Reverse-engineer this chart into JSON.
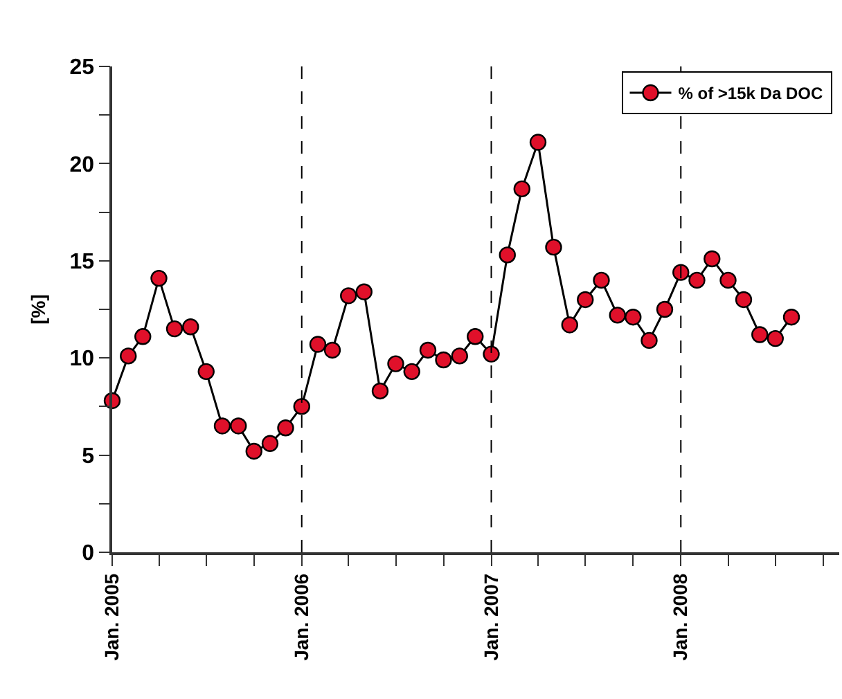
{
  "chart_data": {
    "type": "line",
    "ylabel": "[%]",
    "x": [
      "2005-01",
      "2005-02",
      "2005-03",
      "2005-04",
      "2005-05",
      "2005-06",
      "2005-07",
      "2005-08",
      "2005-09",
      "2005-10",
      "2005-11",
      "2005-12",
      "2006-01",
      "2006-02",
      "2006-03",
      "2006-04",
      "2006-05",
      "2006-06",
      "2006-07",
      "2006-08",
      "2006-09",
      "2006-10",
      "2006-11",
      "2006-12",
      "2007-01",
      "2007-02",
      "2007-03",
      "2007-04",
      "2007-05",
      "2007-06",
      "2007-07",
      "2007-08",
      "2007-09",
      "2007-10",
      "2007-11",
      "2007-12",
      "2008-01",
      "2008-02",
      "2008-03",
      "2008-04",
      "2008-05",
      "2008-06",
      "2008-07",
      "2008-08"
    ],
    "series": [
      {
        "name": "% of >15k Da DOC",
        "color": "#e0102a",
        "values": [
          7.8,
          10.1,
          11.1,
          14.1,
          11.5,
          11.6,
          9.3,
          6.5,
          6.5,
          5.2,
          5.6,
          6.4,
          7.5,
          10.7,
          10.4,
          13.2,
          13.4,
          8.3,
          9.7,
          9.3,
          10.4,
          9.9,
          10.1,
          11.1,
          10.2,
          15.3,
          18.7,
          21.1,
          15.7,
          11.7,
          13.0,
          14.0,
          12.2,
          12.1,
          10.9,
          12.5,
          14.4,
          14.0,
          15.1,
          14.0,
          13.0,
          11.2,
          11.0,
          12.1
        ]
      }
    ],
    "xlim": [
      "2005-01",
      "2008-11"
    ],
    "xticks": [
      {
        "value": "2005-01",
        "label": "Jan. 2005"
      },
      {
        "value": "2005-04",
        "label": null
      },
      {
        "value": "2005-07",
        "label": null
      },
      {
        "value": "2005-10",
        "label": null
      },
      {
        "value": "2006-01",
        "label": "Jan. 2006"
      },
      {
        "value": "2006-04",
        "label": null
      },
      {
        "value": "2006-07",
        "label": null
      },
      {
        "value": "2006-10",
        "label": null
      },
      {
        "value": "2007-01",
        "label": "Jan. 2007"
      },
      {
        "value": "2007-04",
        "label": null
      },
      {
        "value": "2007-07",
        "label": null
      },
      {
        "value": "2007-10",
        "label": null
      },
      {
        "value": "2008-01",
        "label": "Jan. 2008"
      },
      {
        "value": "2008-04",
        "label": null
      },
      {
        "value": "2008-07",
        "label": null
      },
      {
        "value": "2008-10",
        "label": null
      }
    ],
    "ylim": [
      0,
      25
    ],
    "yticks": [
      0,
      {
        "value": 2.5,
        "label": null
      },
      5,
      {
        "value": 7.5,
        "label": null
      },
      10,
      {
        "value": 12.5,
        "label": null
      },
      15,
      {
        "value": 17.5,
        "label": null
      },
      20,
      {
        "value": 22.5,
        "label": null
      },
      25
    ],
    "ref_lines": [
      {
        "axis": "x",
        "value": "2006-01",
        "line_style": "dashed",
        "color": "#000000"
      },
      {
        "axis": "x",
        "value": "2007-01",
        "line_style": "dashed",
        "color": "#000000"
      },
      {
        "axis": "x",
        "value": "2008-01",
        "line_style": "dashed",
        "color": "#000000"
      }
    ],
    "grid": false,
    "legend": "top right",
    "marker": "circle",
    "line_style": "solid"
  }
}
